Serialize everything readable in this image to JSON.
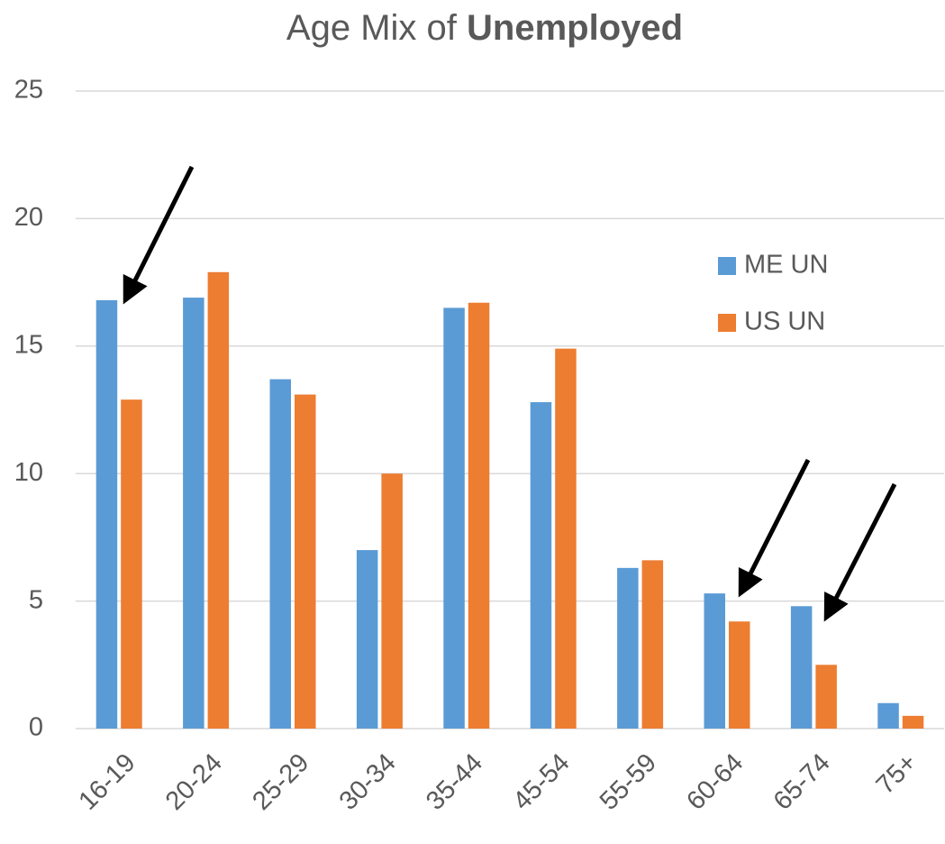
{
  "chart_data": {
    "type": "bar",
    "title": {
      "text": "Age Mix of",
      "bold": "Unemployed"
    },
    "categories": [
      "16-19",
      "20-24",
      "25-29",
      "30-34",
      "35-44",
      "45-54",
      "55-59",
      "60-64",
      "65-74",
      "75+"
    ],
    "series": [
      {
        "name": "ME UN",
        "color": "#5b9bd5",
        "values": [
          16.8,
          16.9,
          13.7,
          7.0,
          16.5,
          12.8,
          6.3,
          5.3,
          4.8,
          1.0
        ]
      },
      {
        "name": "US UN",
        "color": "#ed7d31",
        "values": [
          12.9,
          17.9,
          13.1,
          10.0,
          16.7,
          14.9,
          6.6,
          4.2,
          2.5,
          0.5
        ]
      }
    ],
    "ylim": [
      0,
      25
    ],
    "yticks": [
      0,
      5,
      10,
      15,
      20,
      25
    ],
    "grid": true,
    "legend": "right"
  }
}
